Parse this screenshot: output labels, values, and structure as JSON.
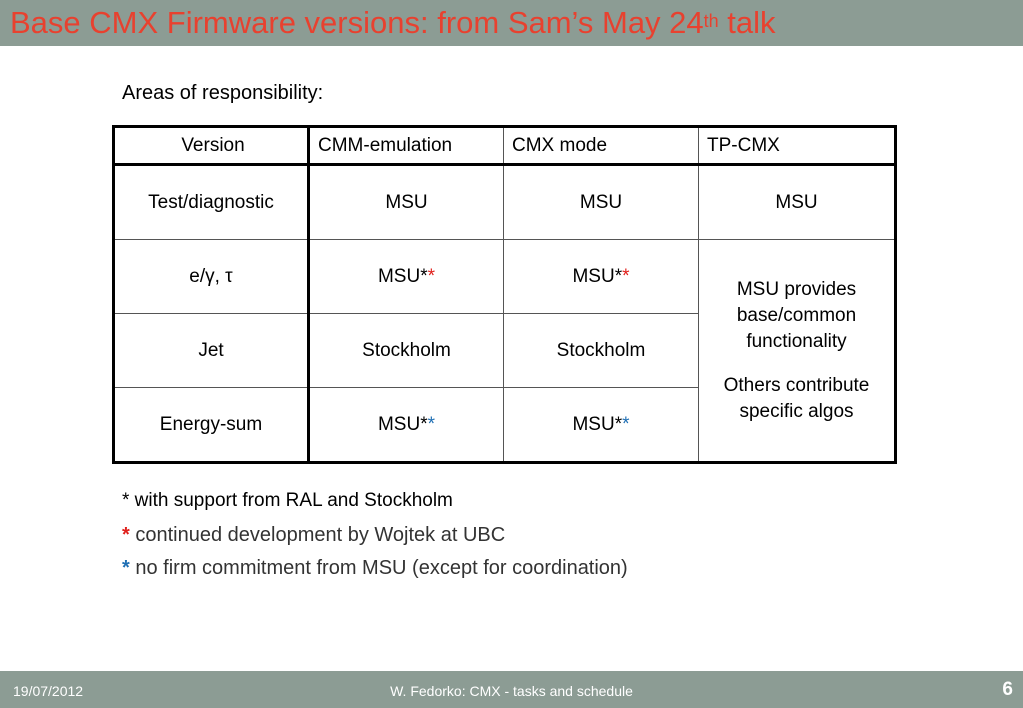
{
  "header": {
    "title_main": "Base CMX Firmware versions: from Sam’s May 24",
    "title_sup": "th",
    "title_end": " talk"
  },
  "subtitle": "Areas of responsibility:",
  "table": {
    "headers": [
      "Version",
      "CMM-emulation",
      "CMX mode",
      "TP-CMX"
    ],
    "rows": [
      {
        "label": "Test/diagnostic",
        "cmm": "MSU",
        "cmm_star": "",
        "cmx": "MSU",
        "cmx_star": "",
        "tp": "MSU"
      },
      {
        "label": "e/γ, τ",
        "cmm": "MSU*",
        "cmm_star": "*",
        "cmx": "MSU*",
        "cmx_star": "*"
      },
      {
        "label": "Jet",
        "cmm": "Stockholm",
        "cmm_star": "",
        "cmx": "Stockholm",
        "cmx_star": ""
      },
      {
        "label": "Energy-sum",
        "cmm": "MSU*",
        "cmm_star": "*",
        "cmx": "MSU*",
        "cmx_star": "*"
      }
    ],
    "tp_merged": {
      "line1": "MSU provides",
      "line2": "base/common",
      "line3": "functionality",
      "line4": "Others contribute",
      "line5": "specific algos"
    },
    "star_colors": {
      "red": "#e0201c",
      "blue": "#1f6fb4"
    }
  },
  "footnotes": {
    "general": "* with support from RAL and Stockholm",
    "red_star": "*",
    "red_text": " continued development by Wojtek at UBC",
    "blue_star": "*",
    "blue_text": " no firm commitment  from MSU (except for coordination)"
  },
  "footer": {
    "date": "19/07/2012",
    "center": "W. Fedorko: CMX - tasks and schedule",
    "page": "6"
  },
  "colors": {
    "title": "#e8412f",
    "bar": "#8c9c94"
  }
}
